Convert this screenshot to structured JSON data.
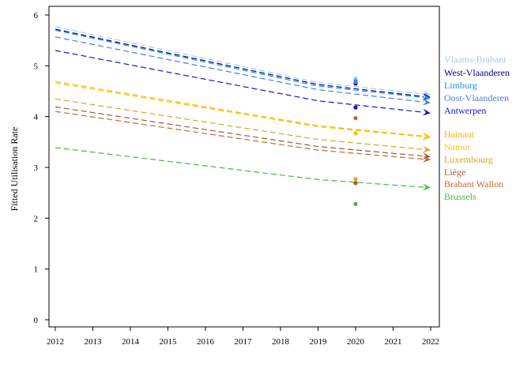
{
  "chart_data": {
    "type": "line",
    "title": "",
    "xlabel": "",
    "ylabel": "Fitted Utilisation Rate",
    "xlim": [
      2012,
      2022
    ],
    "ylim": [
      0,
      6
    ],
    "x_ticks": [
      "2012",
      "2013",
      "2014",
      "2015",
      "2016",
      "2017",
      "2018",
      "2019",
      "2020",
      "2021",
      "2022"
    ],
    "y_ticks": [
      "0",
      "1",
      "2",
      "3",
      "4",
      "5",
      "6"
    ],
    "grid": false,
    "legend_position": "right",
    "series": [
      {
        "name": "Vlaams-Brabant",
        "color": "#9fcbef",
        "x": [
          2012,
          2019,
          2022
        ],
        "y": [
          5.77,
          4.67,
          4.43
        ],
        "observed_2020": 4.75
      },
      {
        "name": "West-Vlaanderen",
        "color": "#00007f",
        "x": [
          2012,
          2019,
          2022
        ],
        "y": [
          5.72,
          4.63,
          4.38
        ],
        "observed_2020": 4.65
      },
      {
        "name": "Limburg",
        "color": "#1e90ff",
        "x": [
          2012,
          2019,
          2022
        ],
        "y": [
          5.7,
          4.6,
          4.36
        ],
        "observed_2020": 4.68
      },
      {
        "name": "Oost-Vlaanderen",
        "color": "#4a7fd4",
        "x": [
          2012,
          2019,
          2022
        ],
        "y": [
          5.57,
          4.53,
          4.27
        ],
        "observed_2020": 4.7
      },
      {
        "name": "Antwerpen",
        "color": "#1414d2",
        "x": [
          2012,
          2019,
          2022
        ],
        "y": [
          5.3,
          4.31,
          4.07
        ],
        "observed_2020": 4.18
      },
      {
        "name": "Hainaut",
        "color": "#ffb000",
        "x": [
          2012,
          2019,
          2022
        ],
        "y": [
          4.69,
          3.82,
          3.6
        ],
        "observed_2020": 3.67
      },
      {
        "name": "Namur",
        "color": "#ffc400",
        "x": [
          2012,
          2019,
          2022
        ],
        "y": [
          4.66,
          3.8,
          3.59
        ],
        "observed_2020": 3.67
      },
      {
        "name": "Luxembourg",
        "color": "#d9a32e",
        "x": [
          2012,
          2019,
          2022
        ],
        "y": [
          4.35,
          3.55,
          3.34
        ],
        "observed_2020": 2.77
      },
      {
        "name": "Liège",
        "color": "#9b5c37",
        "x": [
          2012,
          2019,
          2022
        ],
        "y": [
          4.19,
          3.41,
          3.21
        ],
        "observed_2020": 2.69
      },
      {
        "name": "Brabant Wallon",
        "color": "#c8642e",
        "x": [
          2012,
          2019,
          2022
        ],
        "y": [
          4.1,
          3.34,
          3.15
        ],
        "observed_2020": 3.97
      },
      {
        "name": "Brussels",
        "color": "#3cbc3c",
        "x": [
          2012,
          2019,
          2022
        ],
        "y": [
          3.39,
          2.76,
          2.6
        ],
        "observed_2020": 2.28
      }
    ]
  }
}
